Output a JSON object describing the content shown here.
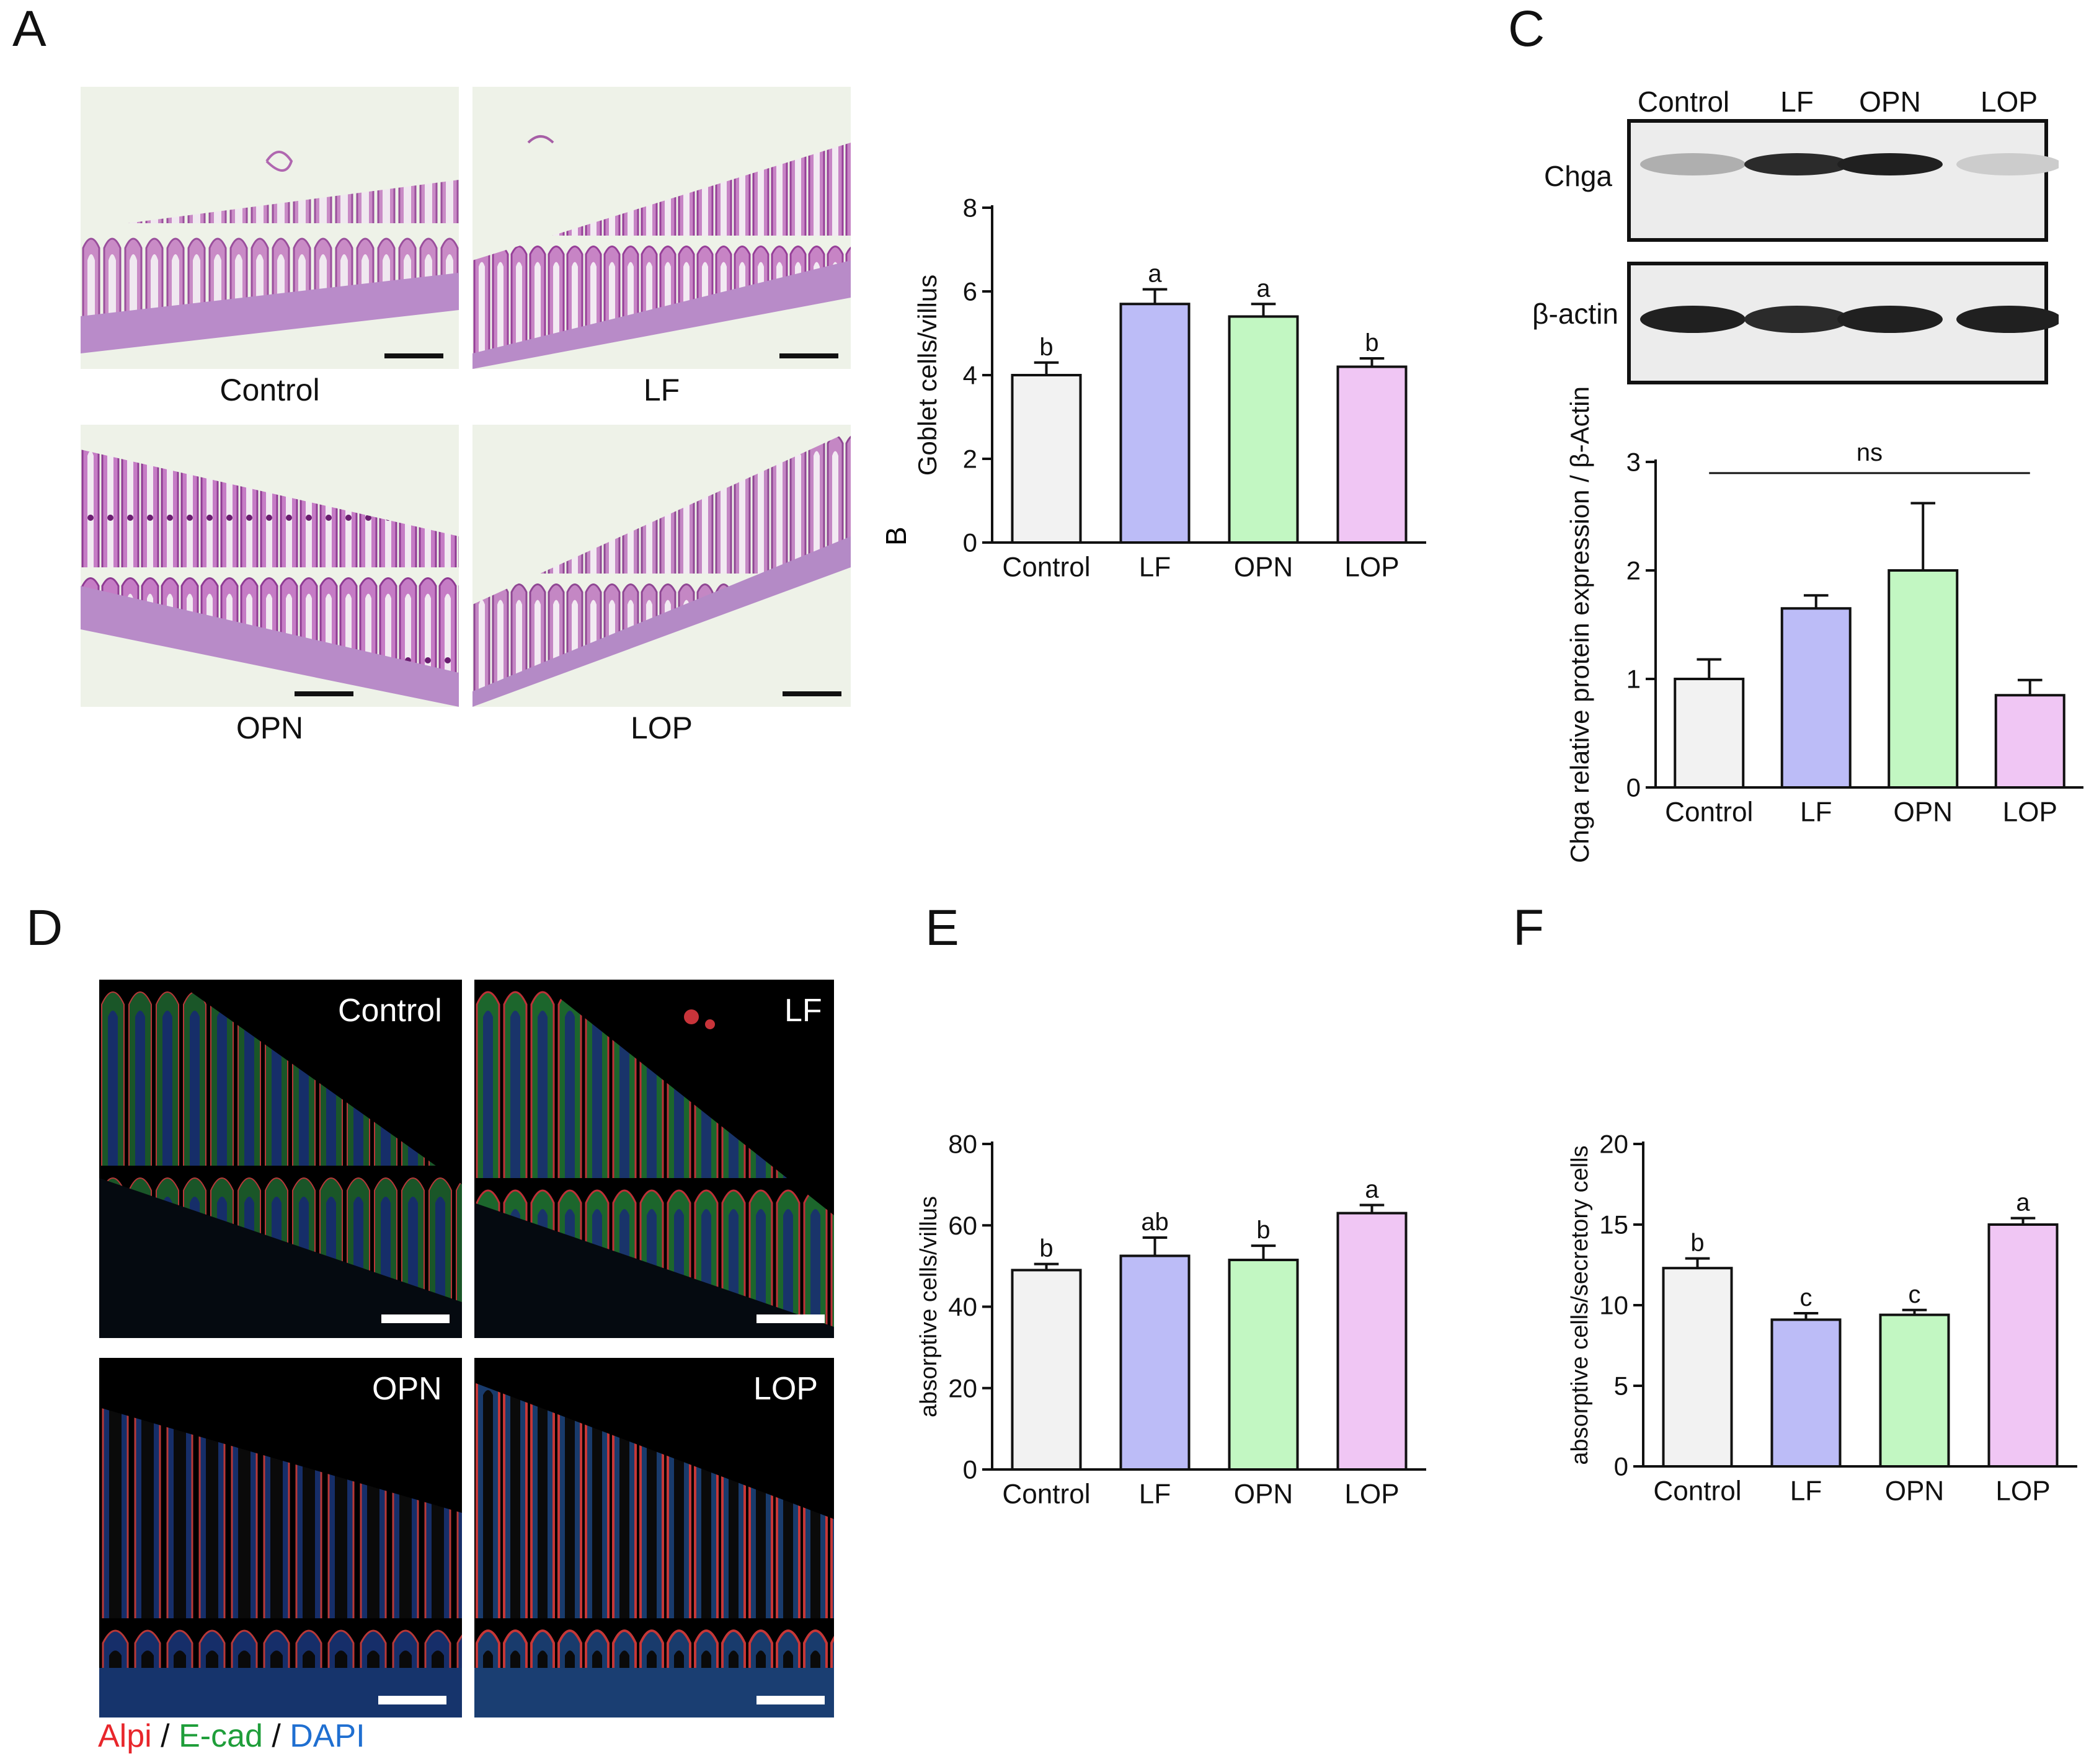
{
  "panels": {
    "A": "A",
    "B": "B",
    "C": "C",
    "D": "D",
    "E": "E",
    "F": "F"
  },
  "groups": [
    "Control",
    "LF",
    "OPN",
    "LOP"
  ],
  "colors": {
    "Control": "#f2f2f2",
    "LF": "#bcbcf7",
    "OPN": "#c2f7c2",
    "LOP": "#f0c6f4",
    "alpi": "#e8262b",
    "ecad": "#1f9e3a",
    "dapi": "#1f6fd1"
  },
  "histology": {
    "labels": [
      "Control",
      "LF",
      "OPN",
      "LOP"
    ]
  },
  "blot": {
    "lanes": [
      "Control",
      "LF",
      "OPN",
      "LOP"
    ],
    "rows": [
      "Chga",
      "β-actin"
    ],
    "intensity_chga": [
      0.25,
      0.85,
      0.9,
      0.12
    ],
    "intensity_actin": [
      0.9,
      0.85,
      0.9,
      0.9
    ]
  },
  "immuno": {
    "labels": [
      "Control",
      "LF",
      "OPN",
      "LOP"
    ],
    "legend": {
      "alpi": "Alpi",
      "sep1": " / ",
      "ecad": "E-cad",
      "sep2": " / ",
      "dapi": "DAPI"
    }
  },
  "chart_data": [
    {
      "id": "B",
      "type": "bar",
      "categories": [
        "Control",
        "LF",
        "OPN",
        "LOP"
      ],
      "values": [
        4.0,
        5.7,
        5.4,
        4.2
      ],
      "errors": [
        0.3,
        0.35,
        0.3,
        0.2
      ],
      "letters": [
        "b",
        "a",
        "a",
        "b"
      ],
      "ylabel": "Goblet cells/villus",
      "ylim": [
        0,
        8
      ],
      "yticks": [
        0,
        2,
        4,
        6,
        8
      ]
    },
    {
      "id": "C",
      "type": "bar",
      "categories": [
        "Control",
        "LF",
        "OPN",
        "LOP"
      ],
      "values": [
        1.0,
        1.65,
        2.0,
        0.85
      ],
      "errors": [
        0.18,
        0.12,
        0.62,
        0.14
      ],
      "letters": [
        "",
        "",
        "",
        ""
      ],
      "ylabel": "Chga relative protein expression / β-Actin",
      "ylim": [
        0,
        3
      ],
      "yticks": [
        0,
        1,
        2,
        3
      ],
      "annotation": "ns"
    },
    {
      "id": "E",
      "type": "bar",
      "categories": [
        "Control",
        "LF",
        "OPN",
        "LOP"
      ],
      "values": [
        49,
        52.5,
        51.5,
        63
      ],
      "errors": [
        1.5,
        4.5,
        3.5,
        2
      ],
      "letters": [
        "b",
        "ab",
        "b",
        "a"
      ],
      "ylabel": "absorptive cells/villus",
      "ylim": [
        0,
        80
      ],
      "yticks": [
        0,
        20,
        40,
        60,
        80
      ]
    },
    {
      "id": "F",
      "type": "bar",
      "categories": [
        "Control",
        "LF",
        "OPN",
        "LOP"
      ],
      "values": [
        12.3,
        9.1,
        9.4,
        15
      ],
      "errors": [
        0.6,
        0.4,
        0.3,
        0.4
      ],
      "letters": [
        "b",
        "c",
        "c",
        "a"
      ],
      "ylabel": "absorptive cells/secretory cells",
      "ylim": [
        0,
        20
      ],
      "yticks": [
        0,
        5,
        10,
        15,
        20
      ]
    }
  ]
}
